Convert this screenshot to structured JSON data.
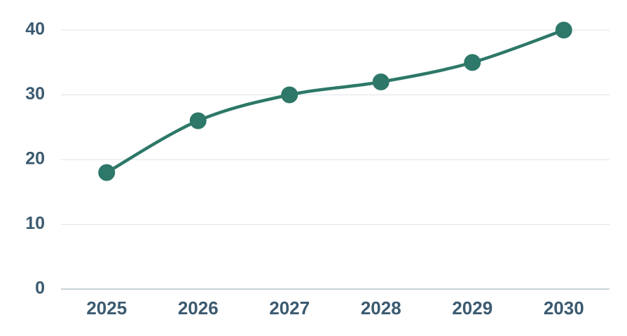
{
  "chart_data": {
    "type": "line",
    "categories": [
      "2025",
      "2026",
      "2027",
      "2028",
      "2029",
      "2030"
    ],
    "values": [
      18,
      26,
      30,
      32,
      35,
      40
    ],
    "color": "#2d7868",
    "ylim": [
      0,
      40
    ],
    "yticks": [
      0,
      10,
      20,
      30,
      40
    ],
    "grid": true
  }
}
